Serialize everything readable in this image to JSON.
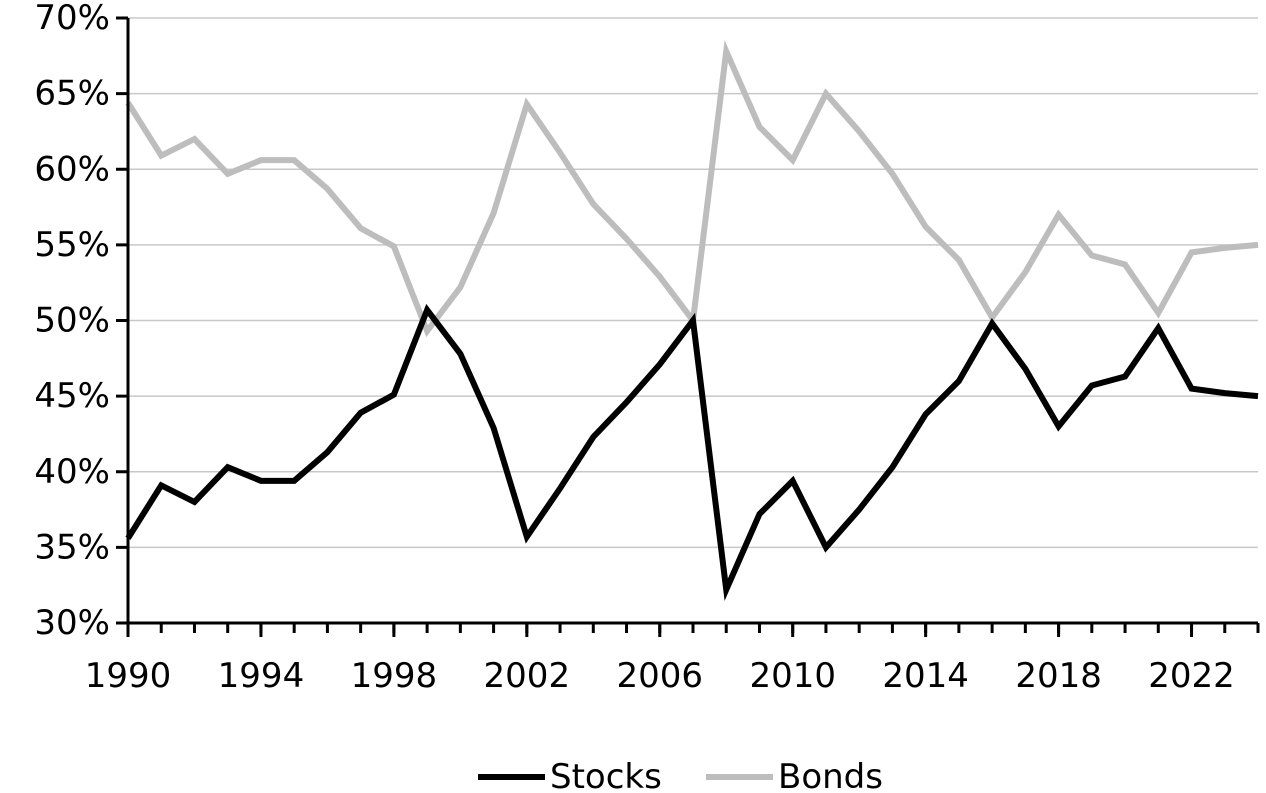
{
  "chart_data": {
    "type": "line",
    "title": "",
    "xlabel": "",
    "ylabel": "",
    "x": [
      1990,
      1991,
      1992,
      1993,
      1994,
      1995,
      1996,
      1997,
      1998,
      1999,
      2000,
      2001,
      2002,
      2003,
      2004,
      2005,
      2006,
      2007,
      2008,
      2009,
      2010,
      2011,
      2012,
      2013,
      2014,
      2015,
      2016,
      2017,
      2018,
      2019,
      2020,
      2021,
      2022,
      2023,
      2024
    ],
    "xlim": [
      1990,
      2024
    ],
    "xticks": [
      1990,
      1994,
      1998,
      2002,
      2006,
      2010,
      2014,
      2018,
      2022
    ],
    "xtick_labels": [
      "1990",
      "1994",
      "1998",
      "2002",
      "2006",
      "2010",
      "2014",
      "2018",
      "2022"
    ],
    "ylim": [
      30,
      70
    ],
    "yticks": [
      30,
      35,
      40,
      45,
      50,
      55,
      60,
      65,
      70
    ],
    "ytick_labels": [
      "30%",
      "35%",
      "40%",
      "45%",
      "50%",
      "55%",
      "60%",
      "65%",
      "70%"
    ],
    "grid": "horizontal",
    "legend_position": "bottom-center",
    "series": [
      {
        "name": "Stocks",
        "color": "#000000",
        "values": [
          35.6,
          39.1,
          38.0,
          40.3,
          39.4,
          39.4,
          41.3,
          43.9,
          45.1,
          50.7,
          47.8,
          42.9,
          35.7,
          38.9,
          42.3,
          44.6,
          47.1,
          50.0,
          32.2,
          37.2,
          39.4,
          35.0,
          37.5,
          40.3,
          43.8,
          46.0,
          49.8,
          46.8,
          43.0,
          45.7,
          46.3,
          49.5,
          45.5,
          45.2,
          45.0
        ]
      },
      {
        "name": "Bonds",
        "color": "#bdbdbd",
        "values": [
          64.4,
          60.9,
          62.0,
          59.7,
          60.6,
          60.6,
          58.7,
          56.1,
          54.9,
          49.3,
          52.2,
          57.1,
          64.3,
          61.1,
          57.7,
          55.4,
          52.9,
          50.0,
          67.8,
          62.8,
          60.6,
          65.0,
          62.5,
          59.7,
          56.2,
          54.0,
          50.2,
          53.2,
          57.0,
          54.3,
          53.7,
          50.5,
          54.5,
          54.8,
          55.0
        ]
      }
    ]
  }
}
